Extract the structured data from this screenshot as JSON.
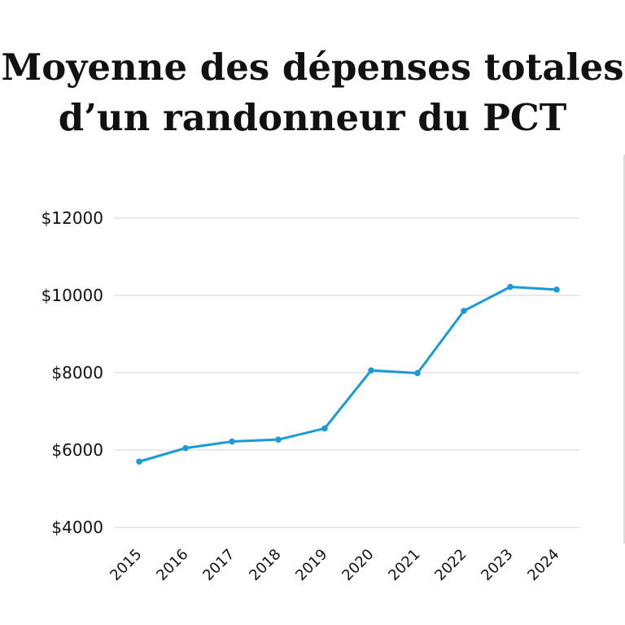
{
  "title_lines": [
    "Moyenne des dépenses totales",
    "d’un randonneur du PCT"
  ],
  "colors": {
    "line": "#1a9bd7",
    "grid": "#e3e3e3",
    "text": "#111111"
  },
  "chart_data": {
    "type": "line",
    "title": "Moyenne des dépenses totales d’un randonneur du PCT",
    "xlabel": "",
    "ylabel": "",
    "categories": [
      "2015",
      "2016",
      "2017",
      "2018",
      "2019",
      "2020",
      "2021",
      "2022",
      "2023",
      "2024"
    ],
    "series": [
      {
        "values": [
          5700,
          6050,
          6220,
          6270,
          6560,
          8060,
          7990,
          9600,
          10220,
          10150
        ]
      }
    ],
    "yticks": [
      4000,
      6000,
      8000,
      10000,
      12000
    ],
    "ytick_labels": [
      "$4000",
      "$6000",
      "$8000",
      "$10000",
      "$12000"
    ],
    "ylim": [
      4000,
      12000
    ],
    "grid": true,
    "legend": "none"
  }
}
